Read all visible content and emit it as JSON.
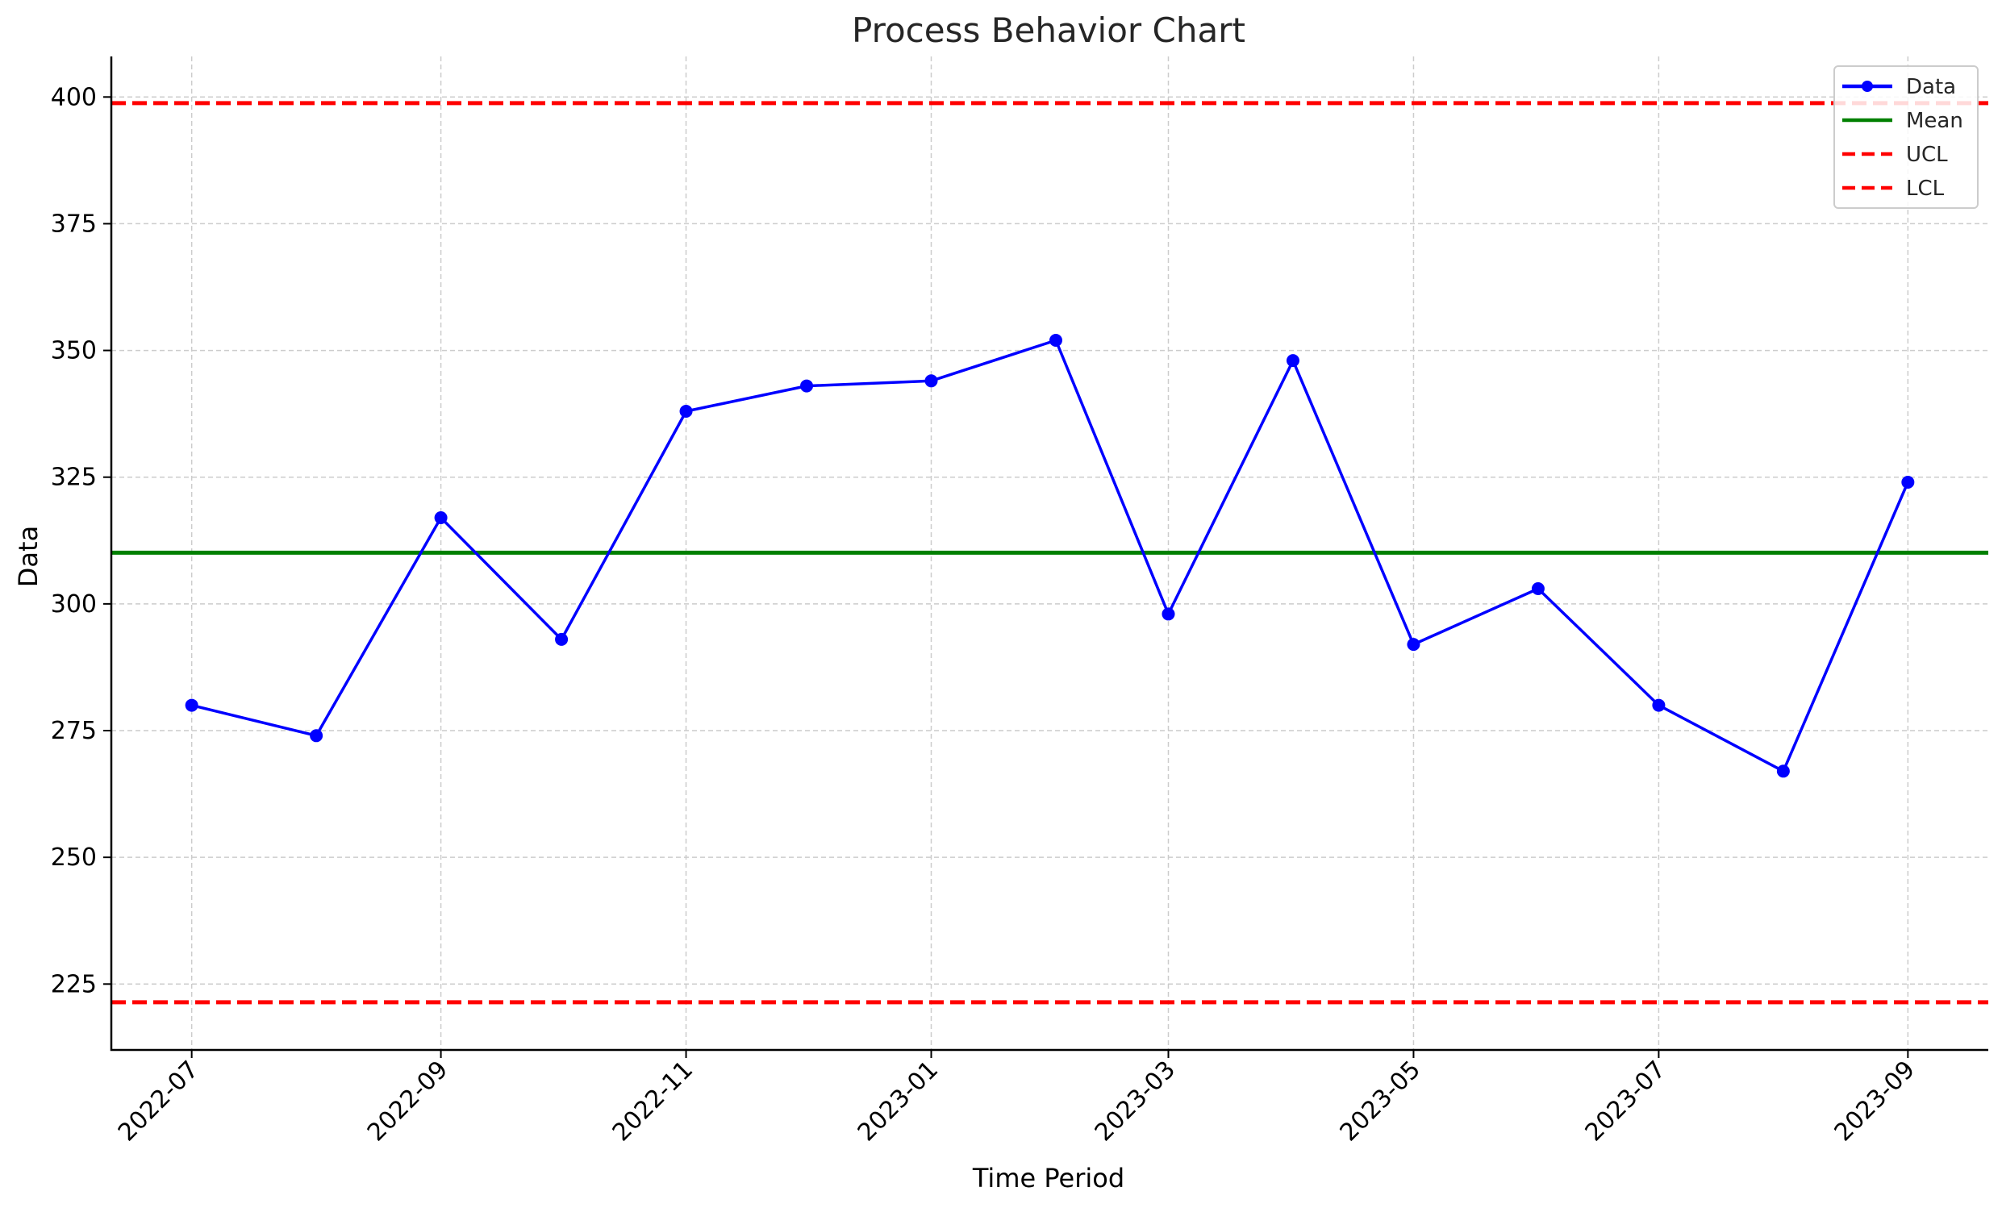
{
  "chart_data": {
    "type": "line",
    "title": "Process Behavior Chart",
    "xlabel": "Time Period",
    "ylabel": "Data",
    "grid": true,
    "legend_position": "top-right",
    "x_axis": {
      "type": "date",
      "range": [
        "2022-06-11",
        "2023-09-21"
      ],
      "tick_labels": [
        "2022-07",
        "2022-09",
        "2022-11",
        "2023-01",
        "2023-03",
        "2023-05",
        "2023-07",
        "2023-09"
      ]
    },
    "y_axis": {
      "range": [
        212,
        408
      ],
      "ticks": [
        225,
        250,
        275,
        300,
        325,
        350,
        375,
        400
      ]
    },
    "series": [
      {
        "name": "Data",
        "style": "line-marker",
        "color": "#0000ff",
        "x": [
          "2022-07-01",
          "2022-08-01",
          "2022-09-01",
          "2022-10-01",
          "2022-11-01",
          "2022-12-01",
          "2023-01-01",
          "2023-02-01",
          "2023-03-01",
          "2023-04-01",
          "2023-05-01",
          "2023-06-01",
          "2023-07-01",
          "2023-08-01",
          "2023-09-01"
        ],
        "y": [
          280,
          274,
          317,
          293,
          338,
          343,
          344,
          352,
          298,
          348,
          292,
          303,
          280,
          267,
          324
        ]
      }
    ],
    "reference_lines": [
      {
        "name": "Mean",
        "value": 310.1,
        "color": "#008000",
        "style": "solid"
      },
      {
        "name": "UCL",
        "value": 398.8,
        "color": "#ff0000",
        "style": "dashed"
      },
      {
        "name": "LCL",
        "value": 221.4,
        "color": "#ff0000",
        "style": "dashed"
      }
    ]
  }
}
